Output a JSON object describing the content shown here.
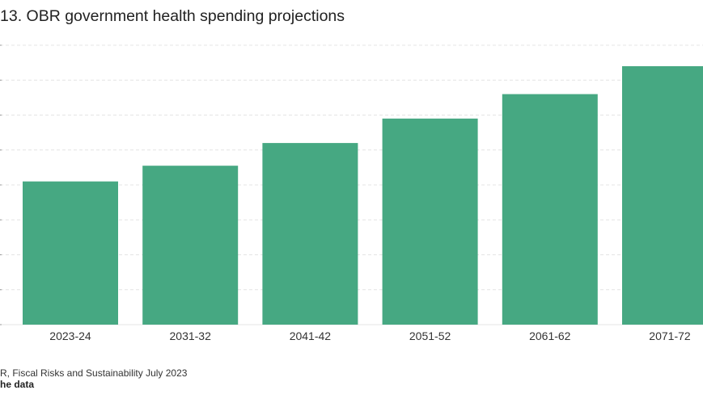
{
  "title": "13. OBR government health spending projections",
  "footer": {
    "source": "R, Fiscal Risks and Sustainability July 2023",
    "link": "he data"
  },
  "colors": {
    "bar": "#46a882",
    "grid": "#e4e4e4"
  },
  "chart_data": {
    "type": "bar",
    "title": "13. OBR government health spending projections",
    "categories": [
      "2023-24",
      "2031-32",
      "2041-42",
      "2051-52",
      "2061-62",
      "2071-72"
    ],
    "values": [
      4.1,
      4.55,
      5.2,
      5.9,
      6.6,
      7.4
    ],
    "ylim": [
      0,
      8
    ],
    "grid": true,
    "legend": "none",
    "xlabel": "",
    "ylabel": ""
  }
}
